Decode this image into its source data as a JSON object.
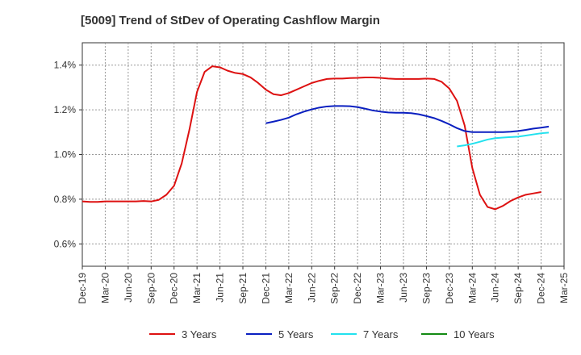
{
  "chart_data": {
    "type": "line",
    "title": "[5009]  Trend of StDev of Operating Cashflow Margin",
    "xlabel": "",
    "ylabel": "",
    "x_tick_labels": [
      "Dec-19",
      "Mar-20",
      "Jun-20",
      "Sep-20",
      "Dec-20",
      "Mar-21",
      "Jun-21",
      "Sep-21",
      "Dec-21",
      "Mar-22",
      "Jun-22",
      "Sep-22",
      "Dec-22",
      "Mar-23",
      "Jun-23",
      "Sep-23",
      "Dec-23",
      "Mar-24",
      "Jun-24",
      "Sep-24",
      "Dec-24",
      "Mar-25"
    ],
    "y_tick_labels": [
      "0.6%",
      "0.8%",
      "1.0%",
      "1.2%",
      "1.4%"
    ],
    "y_ticks": [
      0.6,
      0.8,
      1.0,
      1.2,
      1.4
    ],
    "ylim": [
      0.5,
      1.5
    ],
    "y_unit": "%",
    "grid": true,
    "legend_position": "bottom",
    "series": [
      {
        "name": "3 Years",
        "color": "#dd1111",
        "start_index": 0,
        "values": [
          0.79,
          0.788,
          0.788,
          0.79,
          0.79,
          0.79,
          0.79,
          0.79,
          0.792,
          0.79,
          0.797,
          0.82,
          0.86,
          0.96,
          1.11,
          1.28,
          1.37,
          1.395,
          1.39,
          1.375,
          1.365,
          1.36,
          1.345,
          1.32,
          1.29,
          1.27,
          1.265,
          1.275,
          1.29,
          1.305,
          1.32,
          1.33,
          1.338,
          1.34,
          1.34,
          1.342,
          1.343,
          1.345,
          1.345,
          1.343,
          1.34,
          1.338,
          1.338,
          1.338,
          1.338,
          1.34,
          1.338,
          1.325,
          1.295,
          1.24,
          1.13,
          0.94,
          0.82,
          0.765,
          0.755,
          0.77,
          0.792,
          0.808,
          0.82,
          0.826,
          0.832
        ]
      },
      {
        "name": "5 Years",
        "color": "#0a1fc0",
        "start_index": 24,
        "values": [
          1.14,
          1.147,
          1.155,
          1.165,
          1.18,
          1.192,
          1.202,
          1.21,
          1.215,
          1.217,
          1.217,
          1.216,
          1.212,
          1.205,
          1.197,
          1.192,
          1.188,
          1.187,
          1.187,
          1.185,
          1.18,
          1.172,
          1.163,
          1.15,
          1.135,
          1.118,
          1.105,
          1.1,
          1.1,
          1.1,
          1.1,
          1.1,
          1.102,
          1.105,
          1.11,
          1.116,
          1.12,
          1.125
        ]
      },
      {
        "name": "7 Years",
        "color": "#22e1ee",
        "start_index": 49,
        "values": [
          1.036,
          1.041,
          1.048,
          1.057,
          1.067,
          1.073,
          1.076,
          1.078,
          1.08,
          1.085,
          1.09,
          1.095,
          1.098
        ]
      },
      {
        "name": "10 Years",
        "color": "#138a13",
        "start_index": 0,
        "values": []
      }
    ]
  }
}
